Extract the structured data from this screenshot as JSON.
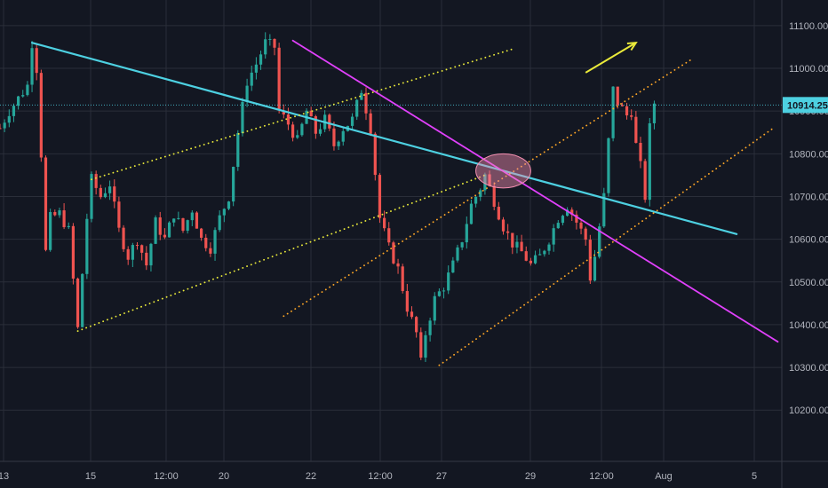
{
  "chart_data": {
    "type": "candlestick",
    "instrument_note": "",
    "colors": {
      "background": "#131722",
      "grid": "#2a2e39",
      "up": "#26a69a",
      "down": "#ef5350",
      "axis_text": "#b2b5be",
      "last_price_tag": "#4dd0e1"
    },
    "x_ticks": [
      "13",
      "15",
      "12:00",
      "20",
      "22",
      "12:00",
      "27",
      "29",
      "12:00",
      "Aug",
      "5"
    ],
    "y_ticks": [
      "10200.00",
      "10300.00",
      "10400.00",
      "10500.00",
      "10600.00",
      "10700.00",
      "10800.00",
      "10900.00",
      "11000.00",
      "11100.00"
    ],
    "ylim": [
      10080,
      11160
    ],
    "last_price": "10914.25",
    "price_path": [
      [
        0,
        10860
      ],
      [
        1,
        10880
      ],
      [
        2,
        10900
      ],
      [
        4,
        10930
      ],
      [
        6,
        10960
      ],
      [
        7,
        11060
      ],
      [
        8,
        11000
      ],
      [
        9,
        10800
      ],
      [
        10,
        10570
      ],
      [
        11,
        10650
      ],
      [
        13,
        10660
      ],
      [
        15,
        10620
      ],
      [
        17,
        10390
      ],
      [
        18,
        10520
      ],
      [
        19,
        10650
      ],
      [
        20,
        10740
      ],
      [
        22,
        10700
      ],
      [
        24,
        10730
      ],
      [
        26,
        10620
      ],
      [
        28,
        10560
      ],
      [
        30,
        10600
      ],
      [
        32,
        10540
      ],
      [
        34,
        10640
      ],
      [
        36,
        10600
      ],
      [
        38,
        10660
      ],
      [
        40,
        10620
      ],
      [
        42,
        10670
      ],
      [
        44,
        10600
      ],
      [
        46,
        10580
      ],
      [
        48,
        10650
      ],
      [
        50,
        10700
      ],
      [
        52,
        10850
      ],
      [
        54,
        10970
      ],
      [
        56,
        11010
      ],
      [
        58,
        11060
      ],
      [
        60,
        11050
      ],
      [
        61,
        10900
      ],
      [
        63,
        10870
      ],
      [
        65,
        10830
      ],
      [
        67,
        10900
      ],
      [
        69,
        10850
      ],
      [
        71,
        10880
      ],
      [
        73,
        10820
      ],
      [
        75,
        10860
      ],
      [
        77,
        10880
      ],
      [
        79,
        10950
      ],
      [
        81,
        10860
      ],
      [
        83,
        10650
      ],
      [
        85,
        10580
      ],
      [
        87,
        10530
      ],
      [
        89,
        10440
      ],
      [
        91,
        10380
      ],
      [
        92,
        10310
      ],
      [
        93,
        10380
      ],
      [
        95,
        10460
      ],
      [
        97,
        10490
      ],
      [
        99,
        10540
      ],
      [
        101,
        10600
      ],
      [
        103,
        10680
      ],
      [
        105,
        10720
      ],
      [
        106,
        10750
      ],
      [
        108,
        10690
      ],
      [
        110,
        10630
      ],
      [
        112,
        10590
      ],
      [
        114,
        10570
      ],
      [
        116,
        10540
      ],
      [
        118,
        10560
      ],
      [
        120,
        10600
      ],
      [
        122,
        10650
      ],
      [
        124,
        10680
      ],
      [
        126,
        10640
      ],
      [
        128,
        10600
      ],
      [
        129,
        10510
      ],
      [
        130,
        10560
      ],
      [
        132,
        10700
      ],
      [
        133,
        10830
      ],
      [
        134,
        10950
      ],
      [
        135,
        10920
      ],
      [
        137,
        10890
      ],
      [
        138,
        10900
      ],
      [
        139,
        10820
      ],
      [
        140,
        10770
      ],
      [
        141,
        10700
      ],
      [
        142,
        10860
      ],
      [
        143,
        10920
      ]
    ],
    "trend_lines": [
      {
        "name": "",
        "color": "#4dd0e1",
        "style": "solid",
        "width": 2.2,
        "from": [
          7,
          11060
        ],
        "to": [
          161,
          10612
        ]
      },
      {
        "name": "",
        "color": "#e040fb",
        "style": "solid",
        "width": 1.8,
        "from": [
          64,
          11065
        ],
        "to": [
          170,
          10360
        ]
      },
      {
        "name": "",
        "color": "#eaea3a",
        "style": "dotted",
        "width": 1.8,
        "from": [
          17,
          10385
        ],
        "to": [
          106,
          10750
        ]
      },
      {
        "name": "",
        "color": "#eaea3a",
        "style": "dotted",
        "width": 1.8,
        "from": [
          20,
          10740
        ],
        "to": [
          112,
          11045
        ]
      },
      {
        "name": "",
        "color": "#ffa726",
        "style": "dotted",
        "width": 1.8,
        "from": [
          62,
          10420
        ],
        "to": [
          151,
          11020
        ]
      },
      {
        "name": "",
        "color": "#ffa726",
        "style": "dotted",
        "width": 1.8,
        "from": [
          96,
          10305
        ],
        "to": [
          169,
          10860
        ]
      }
    ],
    "highlight_ellipse": {
      "center": [
        110,
        10760
      ],
      "radius_bars": 6,
      "radius_price": 40,
      "color": "#f48fb1"
    },
    "arrow": {
      "from": [
        128,
        10990
      ],
      "to": [
        139,
        11060
      ],
      "color": "#eaea3a"
    },
    "grid": true,
    "legend": ""
  }
}
